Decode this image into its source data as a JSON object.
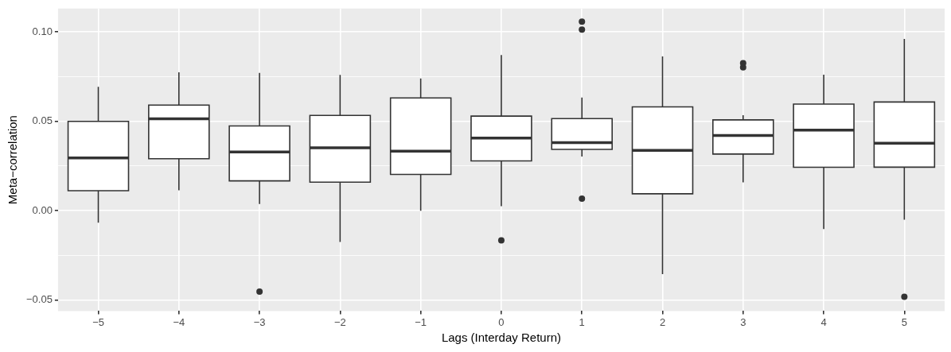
{
  "chart_data": {
    "type": "box",
    "xlabel": "Lags (Interday Return)",
    "ylabel": "Meta−correlation",
    "categories": [
      "−5",
      "−4",
      "−3",
      "−2",
      "−1",
      "0",
      "1",
      "2",
      "3",
      "4",
      "5"
    ],
    "boxes": [
      {
        "low": -0.0067,
        "q1": 0.0112,
        "median": 0.0295,
        "q3": 0.05,
        "high": 0.0693
      },
      {
        "low": 0.0114,
        "q1": 0.0291,
        "median": 0.0514,
        "q3": 0.0591,
        "high": 0.0774
      },
      {
        "low": 0.0038,
        "q1": 0.0167,
        "median": 0.0329,
        "q3": 0.0474,
        "high": 0.0771,
        "outliers": [
          -0.0452
        ]
      },
      {
        "low": -0.0174,
        "q1": 0.016,
        "median": 0.0352,
        "q3": 0.0533,
        "high": 0.0759
      },
      {
        "low": 0.0,
        "q1": 0.0203,
        "median": 0.0333,
        "q3": 0.0631,
        "high": 0.074
      },
      {
        "low": 0.0026,
        "q1": 0.0279,
        "median": 0.0406,
        "q3": 0.0529,
        "high": 0.087,
        "outliers": [
          -0.0165
        ]
      },
      {
        "low": 0.0303,
        "q1": 0.0343,
        "median": 0.0381,
        "q3": 0.0515,
        "high": 0.0633,
        "outliers": [
          0.1057,
          0.1012,
          0.0068
        ]
      },
      {
        "low": -0.0354,
        "q1": 0.0095,
        "median": 0.0338,
        "q3": 0.0581,
        "high": 0.0863
      },
      {
        "low": 0.0159,
        "q1": 0.0317,
        "median": 0.0421,
        "q3": 0.0508,
        "high": 0.0534,
        "outliers": [
          0.0825,
          0.0802
        ]
      },
      {
        "low": -0.0102,
        "q1": 0.0243,
        "median": 0.0451,
        "q3": 0.0596,
        "high": 0.0761
      },
      {
        "low": -0.005,
        "q1": 0.0244,
        "median": 0.0378,
        "q3": 0.0608,
        "high": 0.096,
        "outliers": [
          -0.048
        ]
      }
    ],
    "color": "#ffffff",
    "ylim": [
      -0.056,
      0.113
    ],
    "yticks": [
      {
        "value": -0.05,
        "label": "−0.05"
      },
      {
        "value": -0.025,
        "label": null
      },
      {
        "value": 0,
        "label": "0.00"
      },
      {
        "value": 0.025,
        "label": null
      },
      {
        "value": 0.05,
        "label": "0.05"
      },
      {
        "value": 0.075,
        "label": null
      },
      {
        "value": 0.1,
        "label": "0.10"
      }
    ],
    "grid": true,
    "legend": false
  }
}
